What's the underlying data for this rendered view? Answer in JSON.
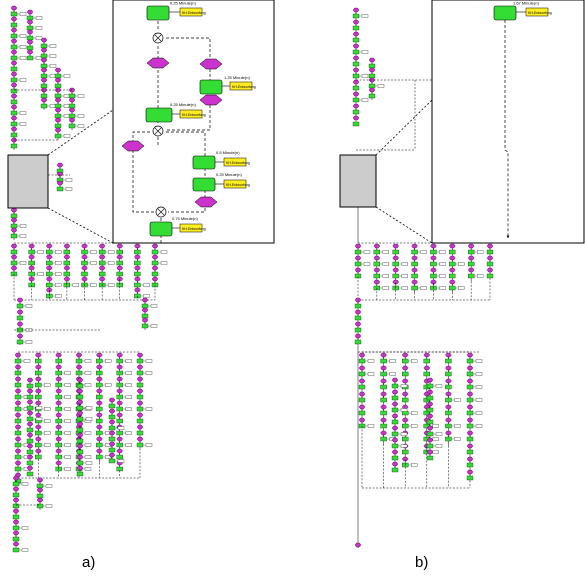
{
  "captions": {
    "a": "a)",
    "b": "b)"
  },
  "colors": {
    "function": "#33dd33",
    "event": "#cc33cc",
    "output": "#ffee22",
    "connector": "#ffffff",
    "zoom_fill": "#cccccc",
    "line": "#000000"
  },
  "icons": [
    "xor-connector-icon",
    "event-hexagon-icon",
    "function-box-icon",
    "output-document-icon"
  ],
  "inset_a": {
    "times": [
      "0.25 Minute(n)",
      "1.25 Minute(n)",
      "0.25 Minute(n)",
      "0.5 Minute(n)",
      "0.25 Minute(n)",
      "0.75 Minute(n)"
    ],
    "output_label": "KH-Entwurfung"
  },
  "inset_b": {
    "times": [
      "1.67 Minute(n)"
    ],
    "output_label": "KH-Entwurfung"
  }
}
